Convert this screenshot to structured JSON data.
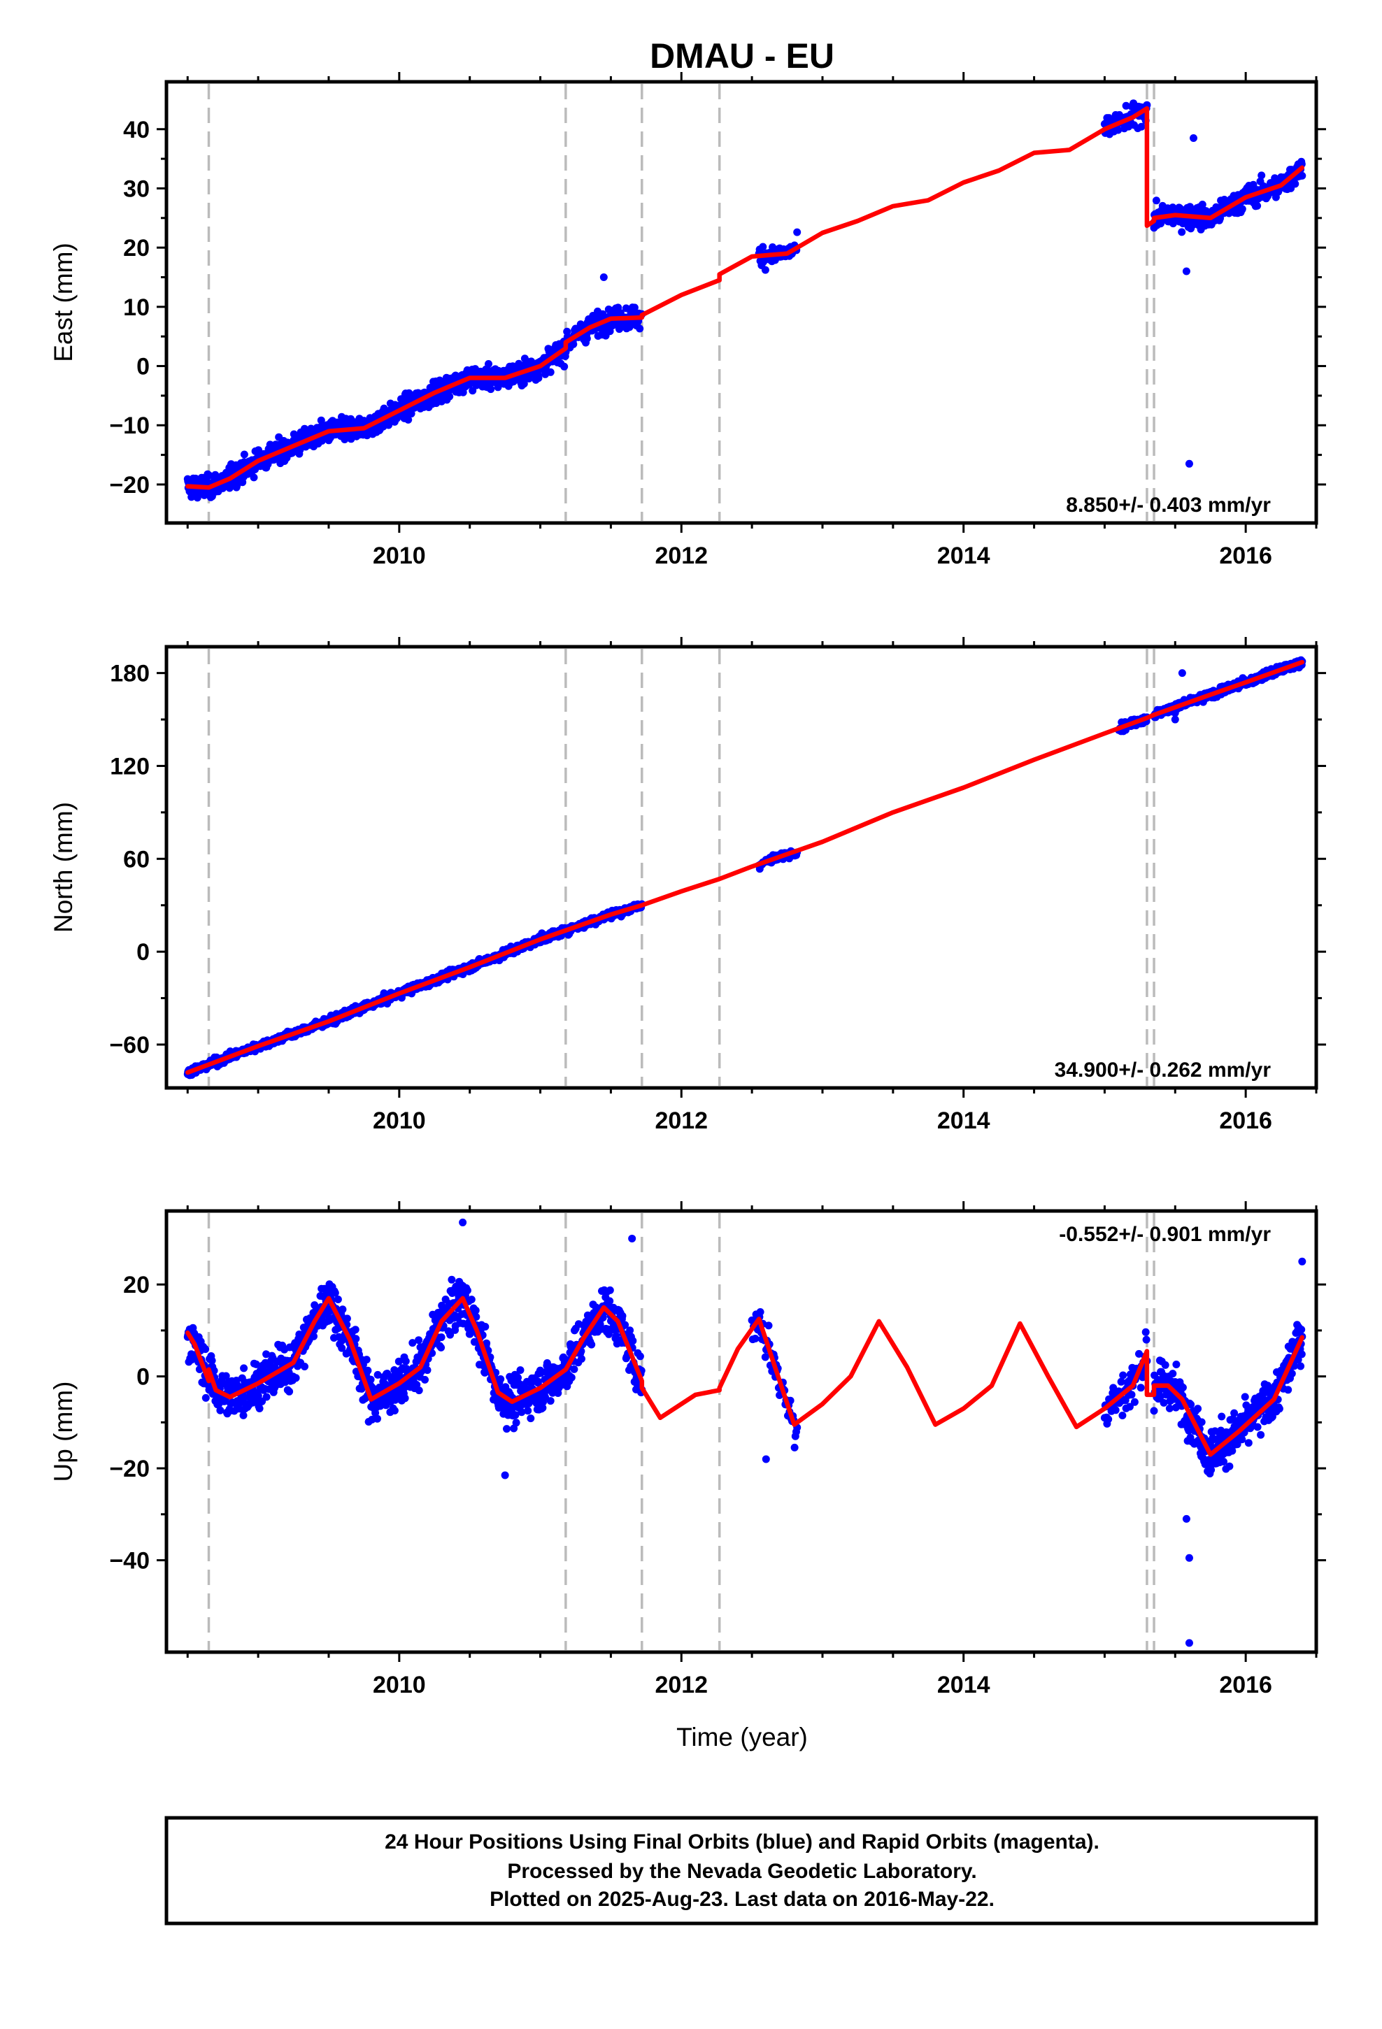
{
  "chart_data": {
    "title": "DMAU - EU",
    "type": "scatter",
    "xlabel": "Time (year)",
    "xlim": [
      2008.35,
      2016.5
    ],
    "x_ticks": [
      2010,
      2012,
      2014,
      2016
    ],
    "colors": {
      "data": "#0000ff",
      "model": "#ff0000",
      "breaks": "#bbbbbb"
    },
    "breaks": [
      2008.65,
      2011.18,
      2011.72,
      2012.27,
      2015.3,
      2015.35
    ],
    "panels": [
      {
        "name": "east",
        "ylabel": "East (mm)",
        "ylim": [
          -26.5,
          48
        ],
        "y_ticks": [
          -20,
          -10,
          0,
          10,
          20,
          30,
          40
        ],
        "rate": "8.850+/- 0.403 mm/yr",
        "rate_position": "bottom-right",
        "model_x": [
          2008.5,
          2008.65,
          2008.8,
          2009.0,
          2009.25,
          2009.5,
          2009.75,
          2010.0,
          2010.25,
          2010.5,
          2010.75,
          2011.0,
          2011.18,
          2011.18,
          2011.35,
          2011.5,
          2011.72,
          2011.72,
          2012.0,
          2012.27,
          2012.27,
          2012.5,
          2012.75,
          2013.0,
          2013.25,
          2013.5,
          2013.75,
          2014.0,
          2014.25,
          2014.5,
          2014.75,
          2015.0,
          2015.2,
          2015.3,
          2015.3,
          2015.35,
          2015.35,
          2015.5,
          2015.75,
          2016.0,
          2016.25,
          2016.4
        ],
        "model_y": [
          -20.3,
          -20.5,
          -19,
          -16,
          -13.5,
          -11,
          -10.5,
          -7.5,
          -4.5,
          -2,
          -2,
          0,
          3,
          4,
          6.5,
          8,
          8.2,
          8.6,
          12,
          14.5,
          15.5,
          18.5,
          19,
          22.5,
          24.5,
          27,
          28,
          31,
          33,
          36,
          36.5,
          40,
          42,
          43.5,
          23.7,
          24.5,
          25,
          25.5,
          25,
          28.5,
          30.5,
          33.5
        ],
        "scatter_segments": [
          {
            "start": 2008.5,
            "end": 2011.18,
            "points": 1000,
            "noise": 1.3
          },
          {
            "start": 2011.18,
            "end": 2011.72,
            "points": 180,
            "noise": 1.3
          },
          {
            "start": 2012.55,
            "end": 2012.82,
            "points": 60,
            "noise": 1.3
          },
          {
            "start": 2015.0,
            "end": 2015.3,
            "points": 70,
            "noise": 1.3
          },
          {
            "start": 2015.35,
            "end": 2016.4,
            "points": 380,
            "noise": 1.3
          }
        ],
        "outliers": [
          [
            2015.63,
            38.5
          ],
          [
            2015.58,
            16
          ],
          [
            2015.6,
            -16.5
          ],
          [
            2011.45,
            15
          ]
        ]
      },
      {
        "name": "north",
        "ylabel": "North (mm)",
        "ylim": [
          -88,
          197
        ],
        "y_ticks": [
          -60,
          0,
          60,
          120,
          180
        ],
        "rate": "34.900+/- 0.262 mm/yr",
        "rate_position": "bottom-right",
        "model_x": [
          2008.5,
          2009.0,
          2009.5,
          2010.0,
          2010.5,
          2011.0,
          2011.5,
          2011.72,
          2012.0,
          2012.27,
          2012.5,
          2013.0,
          2013.5,
          2014.0,
          2014.5,
          2015.0,
          2015.3,
          2015.35,
          2015.75,
          2016.0,
          2016.4
        ],
        "model_y": [
          -78,
          -61,
          -45,
          -27,
          -10,
          8,
          24,
          30,
          39,
          47,
          55,
          71,
          90,
          106,
          124,
          141,
          151,
          153,
          166,
          174,
          187
        ],
        "scatter_segments": [
          {
            "start": 2008.5,
            "end": 2011.72,
            "points": 1100,
            "noise": 1.8
          },
          {
            "start": 2012.55,
            "end": 2012.82,
            "points": 50,
            "noise": 1.8
          },
          {
            "start": 2015.1,
            "end": 2015.3,
            "points": 50,
            "noise": 1.8
          },
          {
            "start": 2015.35,
            "end": 2016.4,
            "points": 380,
            "noise": 1.8
          }
        ],
        "outliers": [
          [
            2015.55,
            180
          ],
          [
            2015.5,
            150
          ]
        ]
      },
      {
        "name": "up",
        "ylabel": "Up (mm)",
        "ylim": [
          -60,
          36
        ],
        "y_ticks": [
          -40,
          -20,
          0,
          20
        ],
        "rate": "-0.552+/- 0.901 mm/yr",
        "rate_position": "top-right",
        "model_x": [
          2008.5,
          2008.55,
          2008.6,
          2008.65,
          2008.65,
          2008.7,
          2008.8,
          2009.0,
          2009.25,
          2009.4,
          2009.5,
          2009.65,
          2009.8,
          2010.0,
          2010.15,
          2010.3,
          2010.45,
          2010.55,
          2010.7,
          2010.8,
          2011.0,
          2011.18,
          2011.18,
          2011.3,
          2011.45,
          2011.55,
          2011.72,
          2011.72,
          2011.85,
          2012.1,
          2012.27,
          2012.27,
          2012.4,
          2012.55,
          2012.8,
          2013.0,
          2013.2,
          2013.4,
          2013.6,
          2013.8,
          2014.0,
          2014.2,
          2014.4,
          2014.6,
          2014.8,
          2015.0,
          2015.2,
          2015.28,
          2015.3,
          2015.3,
          2015.35,
          2015.35,
          2015.45,
          2015.55,
          2015.75,
          2015.95,
          2016.2,
          2016.4
        ],
        "model_y": [
          9.5,
          7,
          3,
          -1,
          1.5,
          -3,
          -4.5,
          -1.5,
          3,
          12,
          17,
          8,
          -5,
          -1.5,
          2,
          12,
          17,
          10,
          -3.5,
          -5.5,
          -2.5,
          1.5,
          1.5,
          8,
          15,
          12,
          -1,
          -2.5,
          -9,
          -4,
          -3,
          -2.5,
          6,
          12.5,
          -10.5,
          -6,
          0,
          12,
          2,
          -10.5,
          -7,
          -2,
          11.5,
          0,
          -11,
          -7,
          -2,
          4,
          5.5,
          -4,
          -4,
          -2,
          -2,
          -5,
          -17,
          -12,
          -5,
          8.5
        ],
        "scatter_segments": [
          {
            "start": 2008.5,
            "end": 2011.72,
            "points": 1100,
            "noise": 3.5
          },
          {
            "start": 2012.5,
            "end": 2012.82,
            "points": 55,
            "noise": 3.5
          },
          {
            "start": 2015.0,
            "end": 2015.3,
            "points": 70,
            "noise": 3.5
          },
          {
            "start": 2015.35,
            "end": 2016.4,
            "points": 380,
            "noise": 3.5
          }
        ],
        "outliers": [
          [
            2015.6,
            -58
          ],
          [
            2015.6,
            -39.5
          ],
          [
            2015.58,
            -31
          ],
          [
            2010.75,
            -21.5
          ],
          [
            2011.65,
            30
          ],
          [
            2010.45,
            33.5
          ],
          [
            2016.4,
            25
          ],
          [
            2012.6,
            -18
          ]
        ]
      }
    ]
  },
  "footer": {
    "line1": "24 Hour Positions Using Final Orbits (blue) and Rapid Orbits (magenta).",
    "line2": "Processed by the Nevada Geodetic Laboratory.",
    "line3": "Plotted on 2025-Aug-23. Last data on 2016-May-22."
  }
}
